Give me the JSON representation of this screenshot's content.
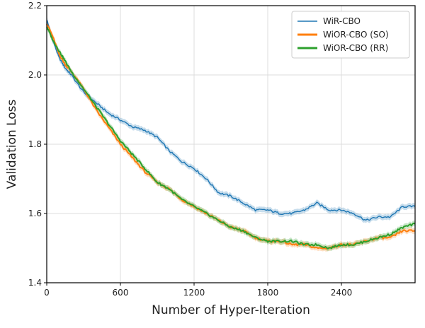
{
  "chart_data": {
    "type": "line",
    "title": "",
    "xlabel": "Number of Hyper-Iteration",
    "ylabel": "Validation Loss",
    "xlim": [
      0,
      3000
    ],
    "ylim": [
      1.4,
      2.2
    ],
    "xticks": [
      0,
      600,
      1200,
      1800,
      2400
    ],
    "yticks": [
      1.4,
      1.6,
      1.8,
      2.0,
      2.2
    ],
    "xtick_labels": [
      "0",
      "600",
      "1200",
      "1800",
      "2400"
    ],
    "ytick_labels": [
      "1.4",
      "1.6",
      "1.8",
      "2.0",
      "2.2"
    ],
    "grid": true,
    "legend_position": "top-right",
    "series": [
      {
        "name": "WiR-CBO",
        "color": "#1f77b4",
        "x": [
          0,
          50,
          100,
          150,
          200,
          300,
          400,
          500,
          600,
          700,
          800,
          900,
          1000,
          1100,
          1200,
          1300,
          1400,
          1500,
          1600,
          1700,
          1800,
          1900,
          2000,
          2100,
          2200,
          2300,
          2400,
          2500,
          2600,
          2700,
          2800,
          2900,
          3000
        ],
        "values": [
          2.16,
          2.1,
          2.05,
          2.02,
          2.0,
          1.95,
          1.92,
          1.89,
          1.87,
          1.85,
          1.84,
          1.82,
          1.78,
          1.75,
          1.73,
          1.7,
          1.66,
          1.65,
          1.63,
          1.61,
          1.61,
          1.6,
          1.6,
          1.61,
          1.63,
          1.61,
          1.61,
          1.6,
          1.58,
          1.59,
          1.59,
          1.62,
          1.62
        ]
      },
      {
        "name": "WiOR-CBO (SO)",
        "color": "#ff7f0e",
        "x": [
          0,
          50,
          100,
          150,
          200,
          300,
          400,
          500,
          600,
          700,
          800,
          900,
          1000,
          1100,
          1200,
          1300,
          1400,
          1500,
          1600,
          1700,
          1800,
          1900,
          2000,
          2100,
          2200,
          2300,
          2400,
          2500,
          2600,
          2700,
          2800,
          2900,
          3000
        ],
        "values": [
          2.15,
          2.11,
          2.06,
          2.03,
          2.01,
          1.96,
          1.9,
          1.85,
          1.8,
          1.76,
          1.72,
          1.69,
          1.67,
          1.64,
          1.62,
          1.6,
          1.58,
          1.56,
          1.55,
          1.53,
          1.52,
          1.52,
          1.51,
          1.51,
          1.5,
          1.5,
          1.51,
          1.51,
          1.52,
          1.53,
          1.53,
          1.55,
          1.55
        ]
      },
      {
        "name": "WiOR-CBO (RR)",
        "color": "#2ca02c",
        "x": [
          0,
          50,
          100,
          150,
          200,
          300,
          400,
          500,
          600,
          700,
          800,
          900,
          1000,
          1100,
          1200,
          1300,
          1400,
          1500,
          1600,
          1700,
          1800,
          1900,
          2000,
          2100,
          2200,
          2300,
          2400,
          2500,
          2600,
          2700,
          2800,
          2900,
          3000
        ],
        "values": [
          2.14,
          2.1,
          2.07,
          2.04,
          2.01,
          1.96,
          1.91,
          1.86,
          1.81,
          1.77,
          1.73,
          1.69,
          1.67,
          1.64,
          1.62,
          1.6,
          1.58,
          1.56,
          1.55,
          1.53,
          1.52,
          1.52,
          1.52,
          1.51,
          1.51,
          1.5,
          1.51,
          1.51,
          1.52,
          1.53,
          1.54,
          1.56,
          1.57
        ]
      }
    ]
  }
}
